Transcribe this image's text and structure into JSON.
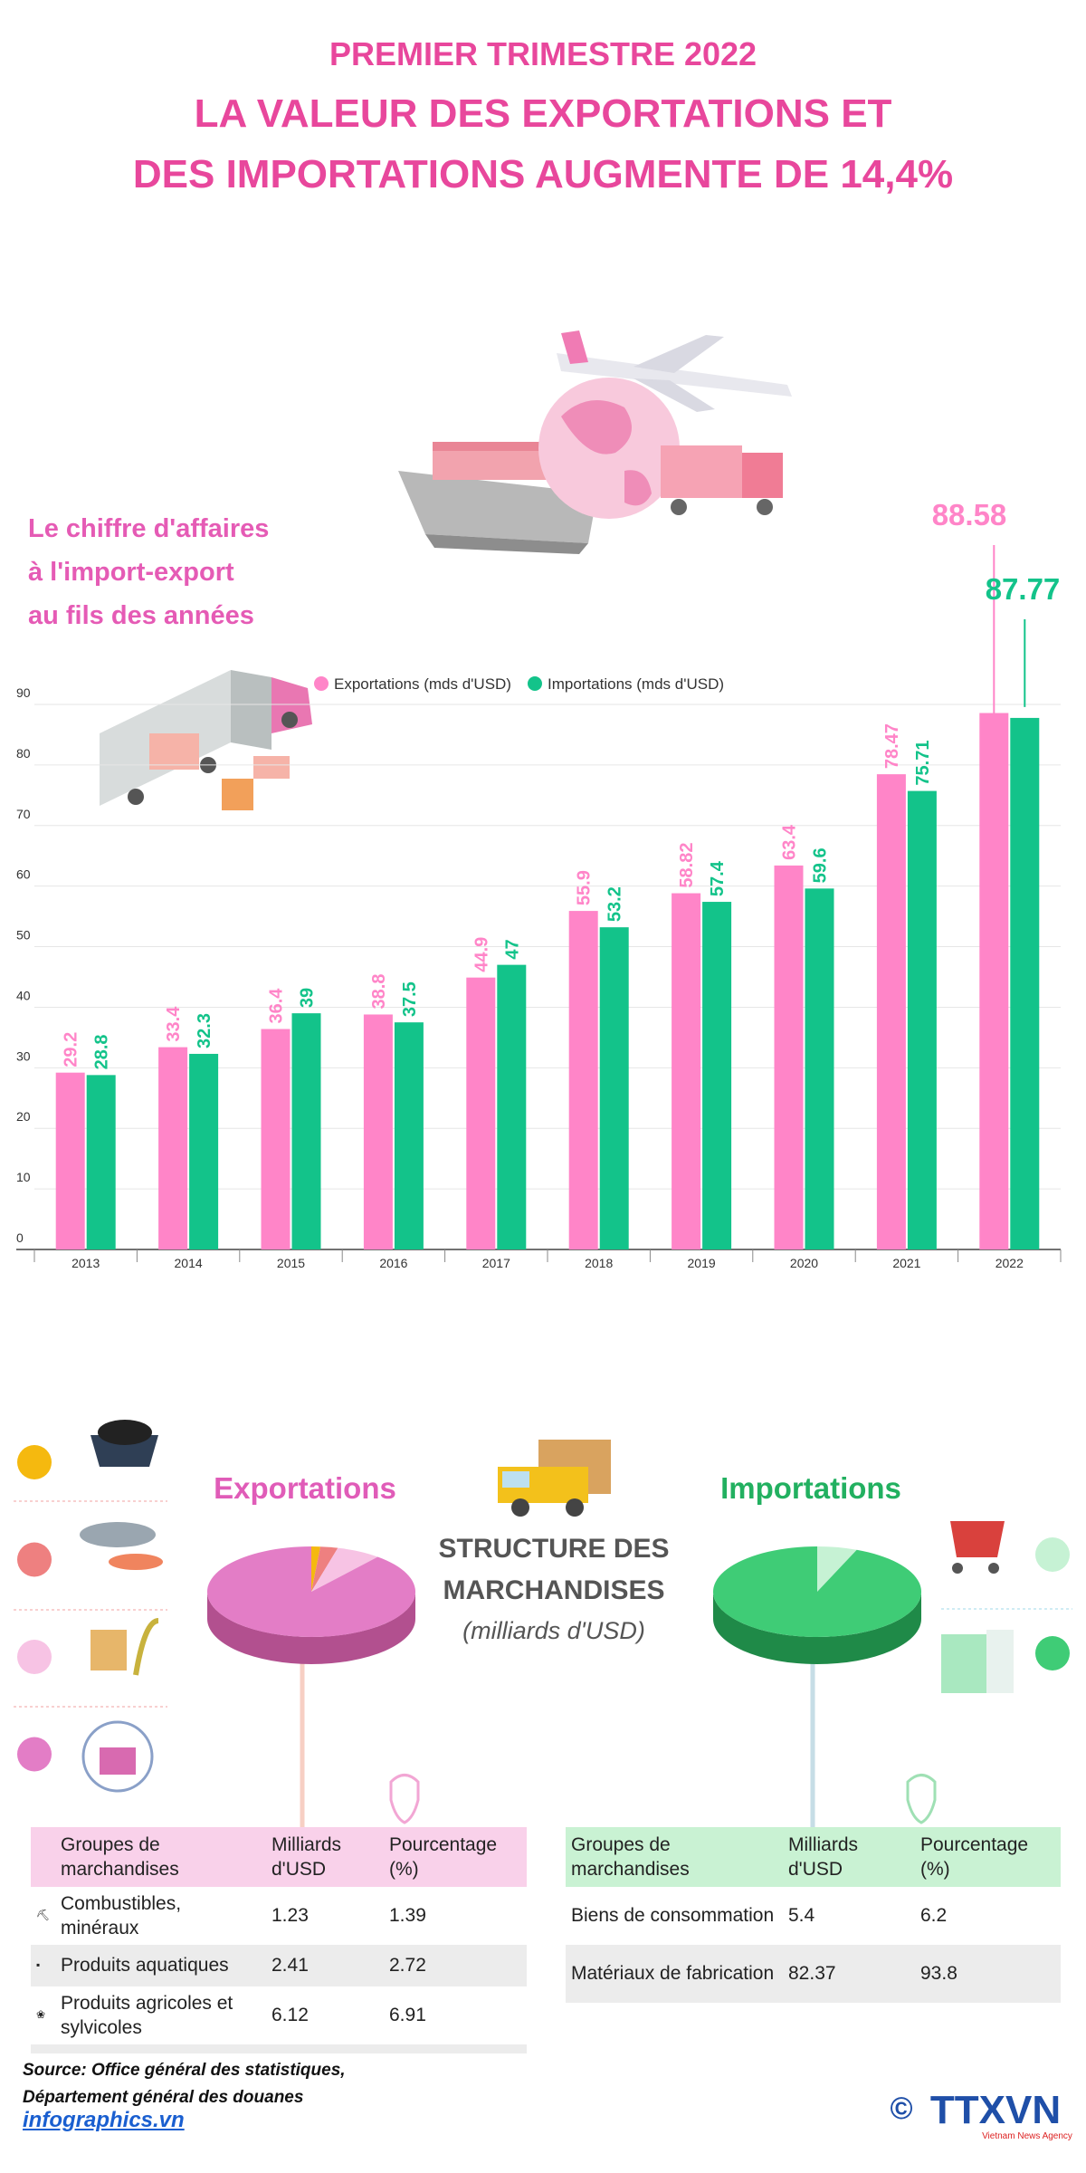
{
  "header": {
    "line1": "PREMIER TRIMESTRE 2022",
    "line2": "LA VALEUR DES EXPORTATIONS ET",
    "line3": "DES IMPORTATIONS AUGMENTE DE 14,4%"
  },
  "chart_data": [
    {
      "type": "bar",
      "title_lines": [
        "Le chiffre d'affaires",
        "à l'import-export",
        "au fils des années"
      ],
      "categories": [
        "2013",
        "2014",
        "2015",
        "2016",
        "2017",
        "2018",
        "2019",
        "2020",
        "2021",
        "2022"
      ],
      "series": [
        {
          "name": "Exportations (mds d'USD)",
          "color": "#ff85c8",
          "values": [
            29.2,
            33.4,
            36.4,
            38.8,
            44.9,
            55.9,
            58.82,
            63.4,
            78.47,
            88.58
          ]
        },
        {
          "name": "Importations (mds d'USD)",
          "color": "#13c38a",
          "values": [
            28.8,
            32.3,
            39,
            37.5,
            47,
            53.2,
            57.4,
            59.6,
            75.71,
            87.77
          ]
        }
      ],
      "ylim": [
        0,
        90
      ],
      "yticks": [
        0,
        10,
        20,
        30,
        40,
        50,
        60,
        70,
        80,
        90
      ],
      "grid": true,
      "legend": "top"
    },
    {
      "type": "pie",
      "title": "Exportations",
      "values": [
        1.39,
        2.72,
        6.91,
        88.98
      ],
      "colors": [
        "#f5b90f",
        "#ee8080",
        "#f7c3e4",
        "#e37dc6"
      ]
    },
    {
      "type": "pie",
      "title": "Importations",
      "values": [
        6.2,
        93.8
      ],
      "colors": [
        "#c6f2d4",
        "#3fcc76"
      ]
    }
  ],
  "structure": {
    "line1": "STRUCTURE DES",
    "line2": "MARCHANDISES",
    "unit": "(milliards d'USD)"
  },
  "tables": [
    {
      "header": [
        "Groupes de marchandises",
        "Milliards d'USD",
        "Pourcentage (%)"
      ],
      "rows": [
        [
          "Combustibles, minéraux",
          "1.23",
          "1.39"
        ],
        [
          "Produits aquatiques",
          "2.41",
          "2.72"
        ],
        [
          "Produits agricoles et sylvicoles",
          "6.12",
          "6.91"
        ]
      ]
    },
    {
      "header": [
        "Groupes de marchandises",
        "Milliards d'USD",
        "Pourcentage (%)"
      ],
      "rows": [
        [
          "Biens de consommation",
          "5.4",
          "6.2"
        ],
        [
          "Matériaux de fabrication",
          "82.37",
          "93.8"
        ]
      ]
    }
  ],
  "source": {
    "line1": "Source: Office général des statistiques,",
    "line2": "Département général des douanes",
    "site": "infographics.vn"
  },
  "logo": {
    "symbol": "©",
    "name": "TTXVN",
    "tagline": "Vietnam News Agency"
  }
}
